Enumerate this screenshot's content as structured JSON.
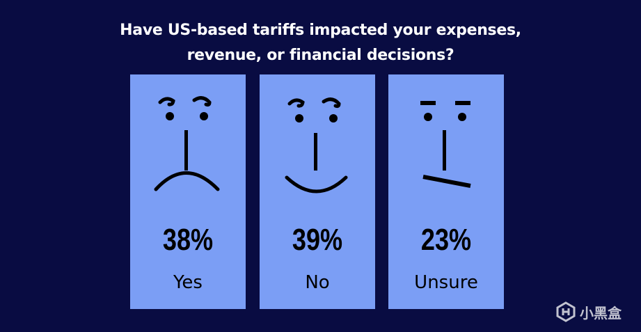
{
  "title_line1": "Have US-based tariffs impacted your expenses,",
  "title_line2": "revenue, or financial decisions?",
  "responses": [
    {
      "percent": "38%",
      "label": "Yes",
      "face": "sad-face-icon"
    },
    {
      "percent": "39%",
      "label": "No",
      "face": "happy-face-icon"
    },
    {
      "percent": "23%",
      "label": "Unsure",
      "face": "unsure-face-icon"
    }
  ],
  "watermark": "小黑盒",
  "colors": {
    "background": "#090c42",
    "card": "#7b9ef5",
    "text": "#000000",
    "title": "#ffffff"
  }
}
